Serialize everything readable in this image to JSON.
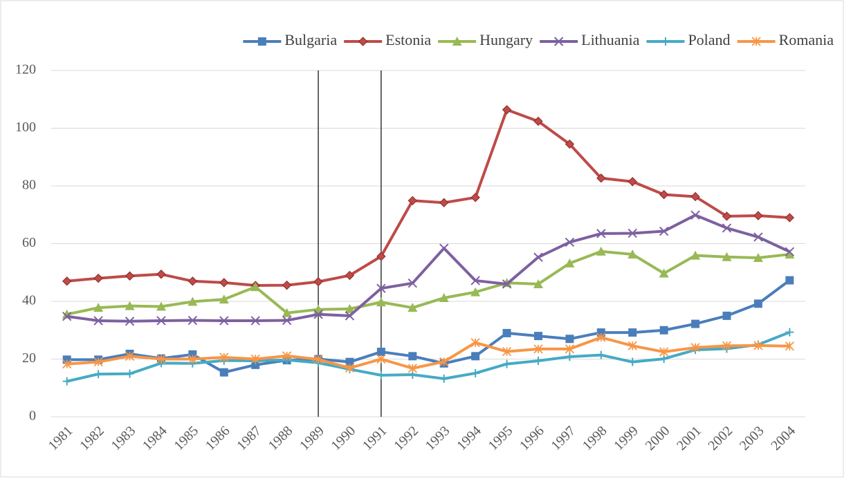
{
  "chart_data": {
    "type": "line",
    "categories": [
      "1981",
      "1982",
      "1983",
      "1984",
      "1985",
      "1986",
      "1987",
      "1988",
      "1989",
      "1990",
      "1991",
      "1992",
      "1993",
      "1994",
      "1995",
      "1996",
      "1997",
      "1998",
      "1999",
      "2000",
      "2001",
      "2002",
      "2003",
      "2004"
    ],
    "series": [
      {
        "name": "Bulgaria",
        "color": "#4a7ebb",
        "marker": "square",
        "values": [
          19.8,
          19.8,
          21.8,
          20.2,
          21.6,
          15.4,
          18.0,
          19.6,
          20.0,
          19.0,
          22.5,
          21.0,
          18.5,
          21.0,
          29.0,
          28.0,
          27.0,
          29.2,
          29.2,
          30.0,
          32.2,
          35.0,
          39.2,
          47.3
        ]
      },
      {
        "name": "Estonia",
        "color": "#be4b48",
        "marker": "diamond",
        "values": [
          47.0,
          48.0,
          48.8,
          49.4,
          47.0,
          46.5,
          45.5,
          45.6,
          46.8,
          49.0,
          55.6,
          74.9,
          74.2,
          76.0,
          106.4,
          102.4,
          94.5,
          82.7,
          81.5,
          77.0,
          76.3,
          69.5,
          69.7,
          69.0
        ]
      },
      {
        "name": "Hungary",
        "color": "#98b954",
        "marker": "triangle",
        "values": [
          35.5,
          37.8,
          38.4,
          38.2,
          39.9,
          40.7,
          45.0,
          36.0,
          37.2,
          37.4,
          39.7,
          37.8,
          41.2,
          43.2,
          46.4,
          46.0,
          53.2,
          57.3,
          56.3,
          49.7,
          55.9,
          55.4,
          55.1,
          56.3
        ]
      },
      {
        "name": "Lithuania",
        "color": "#7d60a0",
        "marker": "x",
        "values": [
          34.8,
          33.3,
          33.1,
          33.3,
          33.4,
          33.3,
          33.3,
          33.4,
          35.5,
          35.0,
          44.5,
          46.3,
          58.4,
          47.2,
          46.0,
          55.3,
          60.5,
          63.5,
          63.6,
          64.3,
          69.9,
          65.4,
          62.3,
          57.2
        ]
      },
      {
        "name": "Poland",
        "color": "#46aac5",
        "marker": "plus",
        "values": [
          12.3,
          14.8,
          14.9,
          18.6,
          18.5,
          19.5,
          19.4,
          19.7,
          18.7,
          16.5,
          14.4,
          14.6,
          13.2,
          15.1,
          18.3,
          19.4,
          20.8,
          21.4,
          19.0,
          20.1,
          23.2,
          23.6,
          25.0,
          29.3
        ]
      },
      {
        "name": "Romania",
        "color": "#f79646",
        "marker": "star",
        "values": [
          18.3,
          19.0,
          21.0,
          20.0,
          20.0,
          20.6,
          20.0,
          21.1,
          19.9,
          16.9,
          20.0,
          16.8,
          19.1,
          25.7,
          22.6,
          23.5,
          23.5,
          27.5,
          24.6,
          22.5,
          24.0,
          24.6,
          24.7,
          24.5
        ]
      }
    ],
    "vertical_lines": [
      "1989",
      "1991"
    ],
    "ylim": [
      0,
      120
    ],
    "yticks": [
      0,
      20,
      40,
      60,
      80,
      100,
      120
    ],
    "grid": true,
    "legend": "top"
  }
}
